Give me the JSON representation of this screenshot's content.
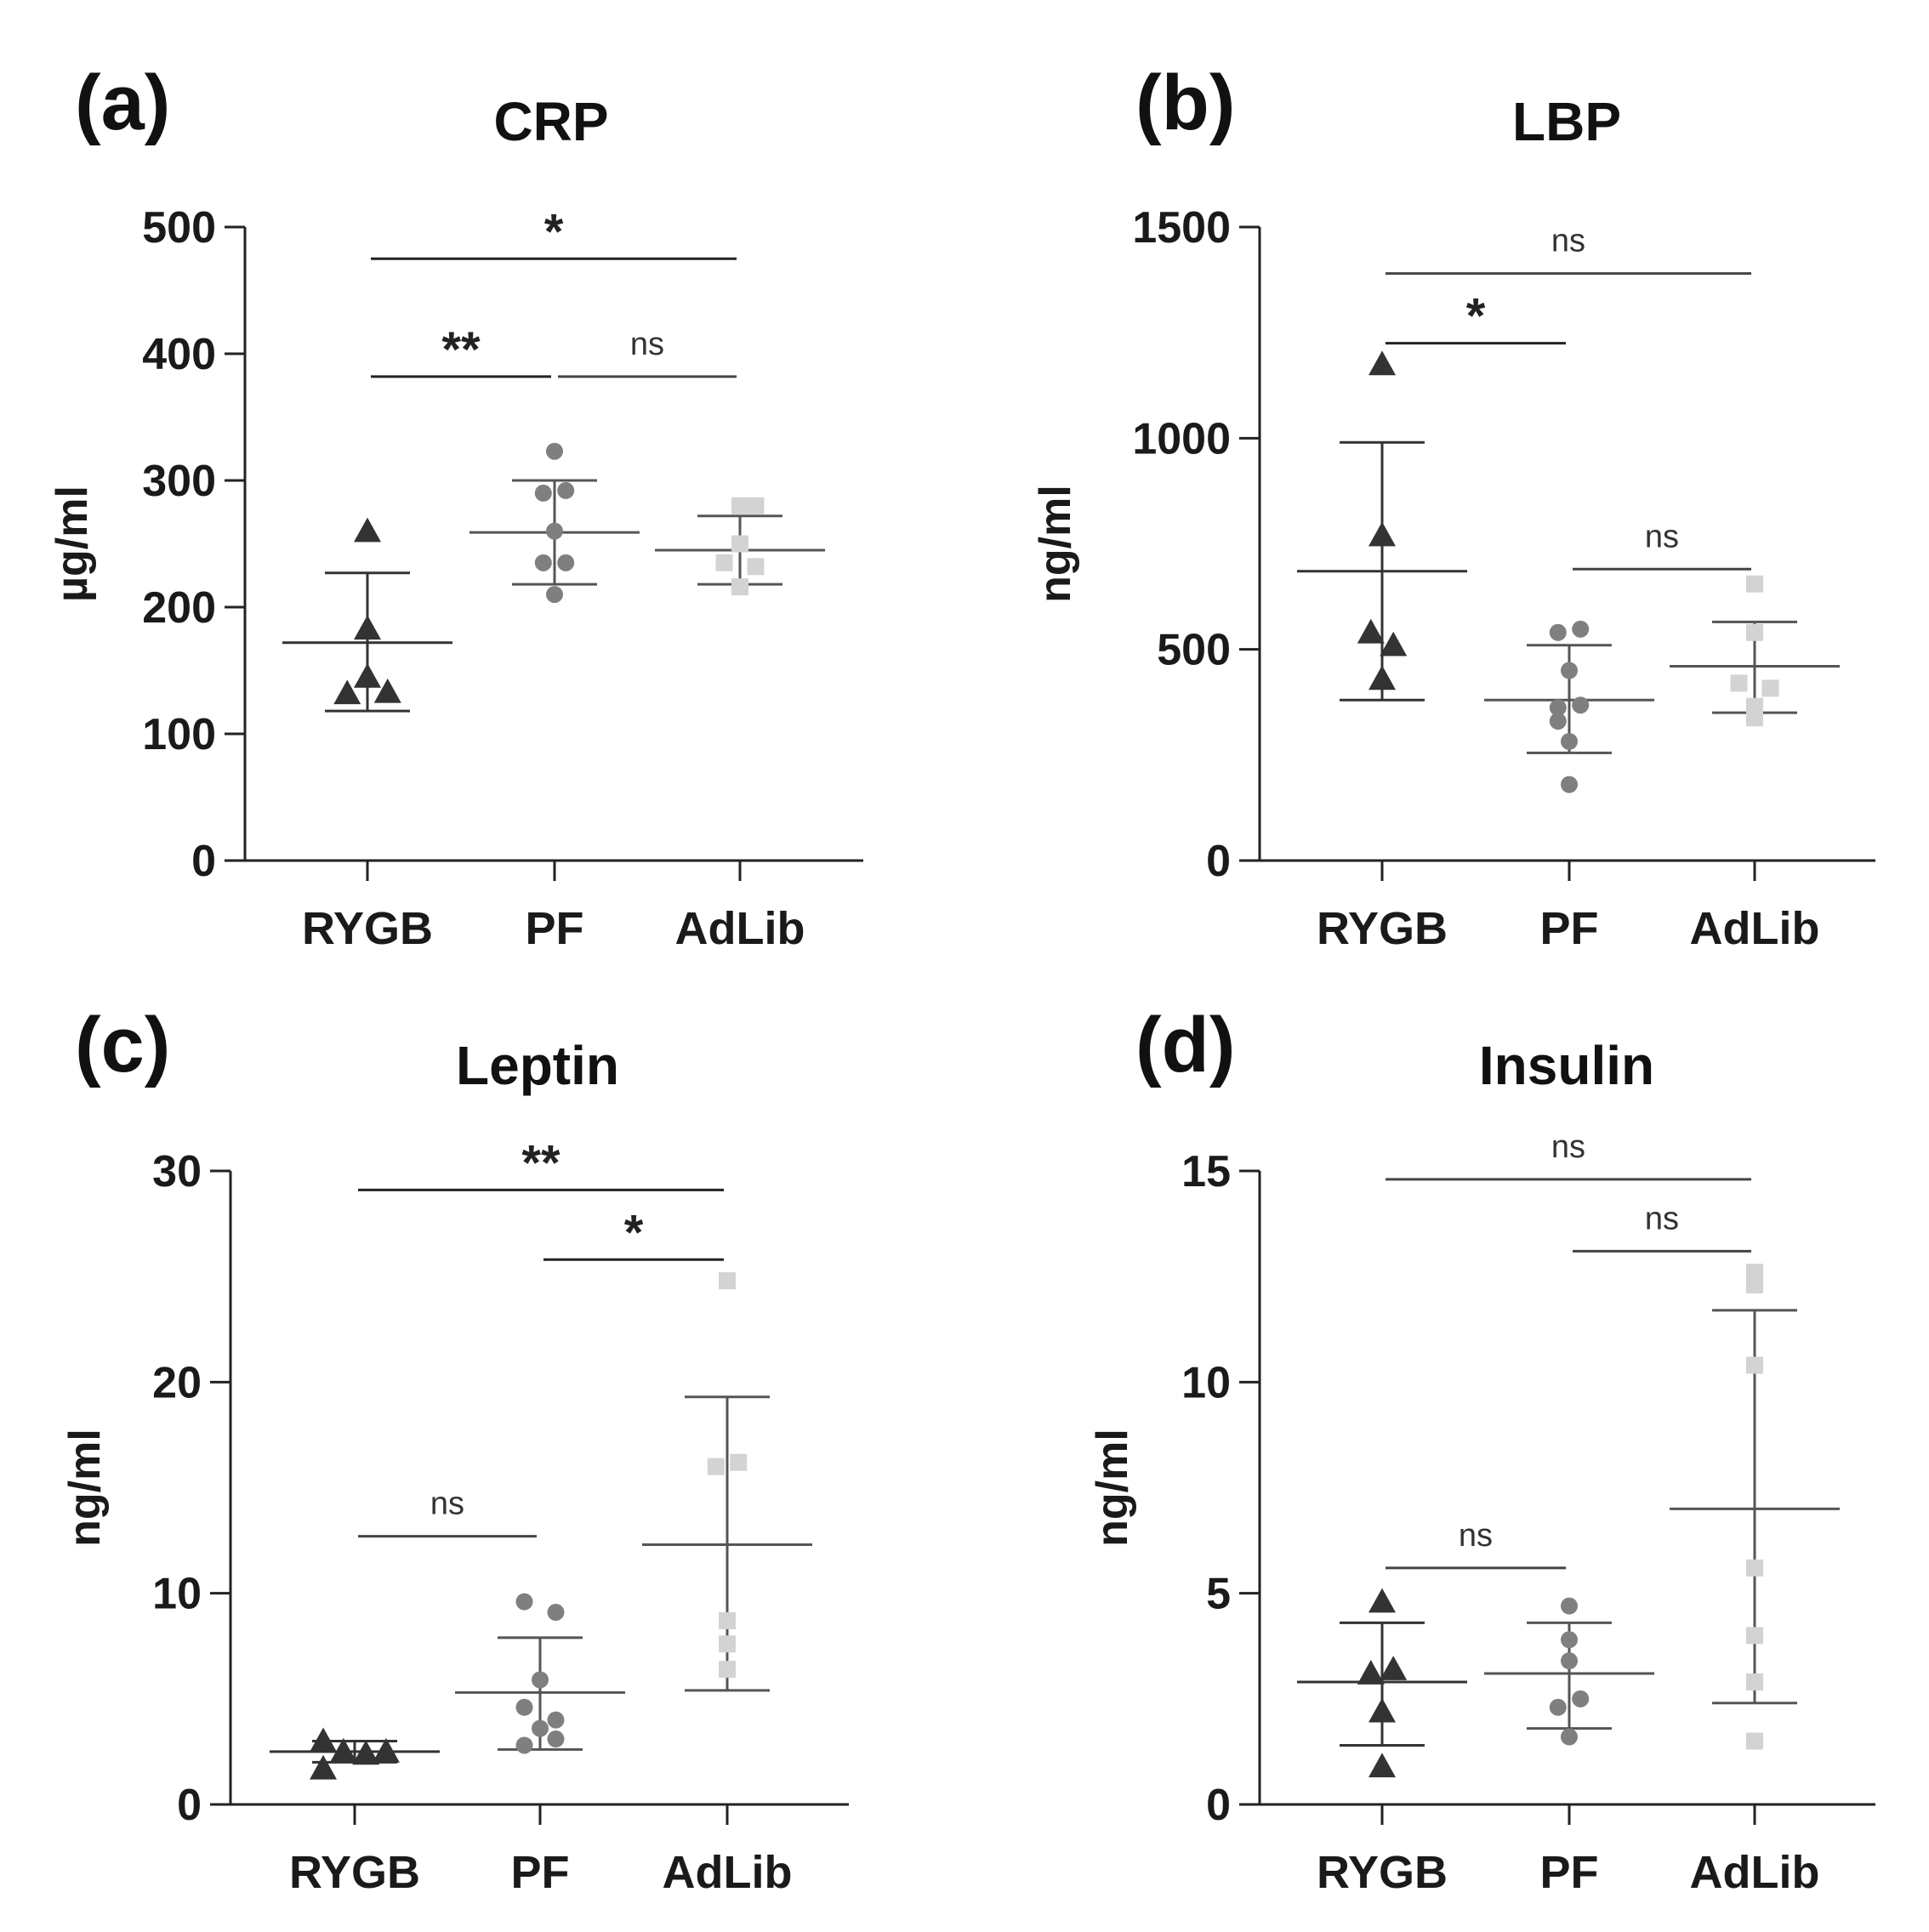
{
  "chart_data": [
    {
      "type": "scatter",
      "panel": "(a)",
      "title": "CRP",
      "ylabel": "µg/ml",
      "xlabel": "",
      "ylim": [
        0,
        500
      ],
      "yticks": [
        0,
        100,
        200,
        300,
        400,
        500
      ],
      "categories": [
        "RYGB",
        "PF",
        "AdLib"
      ],
      "series": [
        {
          "name": "RYGB",
          "marker": "triangle",
          "color": "#333333",
          "mean": 172,
          "sd_upper": 227,
          "sd_lower": 118,
          "points": [
            {
              "dx": 0,
              "y": 260
            },
            {
              "dx": 0,
              "y": 183
            },
            {
              "dx": 0,
              "y": 145
            },
            {
              "dx": -0.18,
              "y": 132
            },
            {
              "dx": 0.18,
              "y": 133
            }
          ]
        },
        {
          "name": "PF",
          "marker": "circle",
          "color": "#7f7f7f",
          "mean": 259,
          "sd_upper": 300,
          "sd_lower": 218,
          "points": [
            {
              "dx": 0,
              "y": 323
            },
            {
              "dx": -0.1,
              "y": 290
            },
            {
              "dx": 0.1,
              "y": 292
            },
            {
              "dx": 0,
              "y": 260
            },
            {
              "dx": -0.1,
              "y": 235
            },
            {
              "dx": 0.1,
              "y": 235
            },
            {
              "dx": 0,
              "y": 210
            }
          ]
        },
        {
          "name": "AdLib",
          "marker": "square",
          "color": "#d3d3d3",
          "mean": 245,
          "sd_upper": 272,
          "sd_lower": 218,
          "points": [
            {
              "dx": 0,
              "y": 280
            },
            {
              "dx": 0.14,
              "y": 280
            },
            {
              "dx": 0,
              "y": 250
            },
            {
              "dx": -0.14,
              "y": 235
            },
            {
              "dx": 0.14,
              "y": 232
            },
            {
              "dx": 0,
              "y": 216
            }
          ]
        }
      ],
      "comparisons": [
        {
          "from": 0,
          "to": 2,
          "y": 475,
          "label": "*"
        },
        {
          "from": 0,
          "to": 1,
          "y": 382,
          "label": "**"
        },
        {
          "from": 1,
          "to": 2,
          "y": 382,
          "label": "ns"
        }
      ]
    },
    {
      "type": "scatter",
      "panel": "(b)",
      "title": "LBP",
      "ylabel": "ng/ml",
      "xlabel": "",
      "ylim": [
        0,
        1500
      ],
      "yticks": [
        0,
        500,
        1000,
        1500
      ],
      "categories": [
        "RYGB",
        "PF",
        "AdLib"
      ],
      "series": [
        {
          "name": "RYGB",
          "marker": "triangle",
          "color": "#333333",
          "mean": 685,
          "sd_upper": 990,
          "sd_lower": 380,
          "points": [
            {
              "dx": 0,
              "y": 1175
            },
            {
              "dx": 0,
              "y": 770
            },
            {
              "dx": -0.1,
              "y": 540
            },
            {
              "dx": 0.1,
              "y": 510
            },
            {
              "dx": 0,
              "y": 430
            }
          ]
        },
        {
          "name": "PF",
          "marker": "circle",
          "color": "#7f7f7f",
          "mean": 380,
          "sd_upper": 510,
          "sd_lower": 255,
          "points": [
            {
              "dx": -0.1,
              "y": 540
            },
            {
              "dx": 0.1,
              "y": 548
            },
            {
              "dx": 0,
              "y": 450
            },
            {
              "dx": -0.1,
              "y": 362
            },
            {
              "dx": 0.1,
              "y": 368
            },
            {
              "dx": -0.1,
              "y": 330
            },
            {
              "dx": 0,
              "y": 282
            },
            {
              "dx": 0,
              "y": 180
            }
          ]
        },
        {
          "name": "AdLib",
          "marker": "square",
          "color": "#d3d3d3",
          "mean": 460,
          "sd_upper": 565,
          "sd_lower": 350,
          "points": [
            {
              "dx": 0,
              "y": 655
            },
            {
              "dx": 0,
              "y": 540
            },
            {
              "dx": -0.14,
              "y": 420
            },
            {
              "dx": 0.14,
              "y": 408
            },
            {
              "dx": 0,
              "y": 365
            },
            {
              "dx": 0,
              "y": 338
            }
          ]
        }
      ],
      "comparisons": [
        {
          "from": 0,
          "to": 2,
          "y": 1390,
          "label": "ns"
        },
        {
          "from": 0,
          "to": 1,
          "y": 1225,
          "label": "*"
        },
        {
          "from": 1,
          "to": 2,
          "y": 690,
          "label": "ns"
        }
      ]
    },
    {
      "type": "scatter",
      "panel": "(c)",
      "title": "Leptin",
      "ylabel": "ng/ml",
      "xlabel": "",
      "ylim": [
        0,
        30
      ],
      "yticks": [
        0,
        10,
        20,
        30
      ],
      "categories": [
        "RYGB",
        "PF",
        "AdLib"
      ],
      "series": [
        {
          "name": "RYGB",
          "marker": "triangle",
          "color": "#333333",
          "mean": 2.5,
          "sd_upper": 3.0,
          "sd_lower": 2.0,
          "points": [
            {
              "dx": -0.28,
              "y": 3.0
            },
            {
              "dx": -0.28,
              "y": 1.7
            },
            {
              "dx": -0.1,
              "y": 2.5
            },
            {
              "dx": 0.1,
              "y": 2.4
            },
            {
              "dx": 0.28,
              "y": 2.5
            }
          ]
        },
        {
          "name": "PF",
          "marker": "circle",
          "color": "#7f7f7f",
          "mean": 5.3,
          "sd_upper": 7.9,
          "sd_lower": 2.6,
          "points": [
            {
              "dx": -0.14,
              "y": 9.6
            },
            {
              "dx": 0.14,
              "y": 9.1
            },
            {
              "dx": 0,
              "y": 5.9
            },
            {
              "dx": -0.14,
              "y": 4.6
            },
            {
              "dx": 0.14,
              "y": 4.0
            },
            {
              "dx": 0,
              "y": 3.6
            },
            {
              "dx": -0.14,
              "y": 2.8
            },
            {
              "dx": 0.14,
              "y": 3.1
            }
          ]
        },
        {
          "name": "AdLib",
          "marker": "square",
          "color": "#d3d3d3",
          "mean": 12.3,
          "sd_upper": 19.3,
          "sd_lower": 5.4,
          "points": [
            {
              "dx": 0,
              "y": 24.8
            },
            {
              "dx": -0.1,
              "y": 16.0
            },
            {
              "dx": 0.1,
              "y": 16.2
            },
            {
              "dx": 0,
              "y": 8.7
            },
            {
              "dx": 0,
              "y": 7.6
            },
            {
              "dx": 0,
              "y": 6.4
            }
          ]
        }
      ],
      "comparisons": [
        {
          "from": 0,
          "to": 2,
          "y": 29.1,
          "label": "**"
        },
        {
          "from": 1,
          "to": 2,
          "y": 25.8,
          "label": "*"
        },
        {
          "from": 0,
          "to": 1,
          "y": 12.7,
          "label": "ns"
        }
      ]
    },
    {
      "type": "scatter",
      "panel": "(d)",
      "title": "Insulin",
      "ylabel": "ng/ml",
      "xlabel": "",
      "ylim": [
        0,
        15
      ],
      "yticks": [
        0,
        5,
        10,
        15
      ],
      "categories": [
        "RYGB",
        "PF",
        "AdLib"
      ],
      "series": [
        {
          "name": "RYGB",
          "marker": "triangle",
          "color": "#333333",
          "mean": 2.9,
          "sd_upper": 4.3,
          "sd_lower": 1.4,
          "points": [
            {
              "dx": 0,
              "y": 4.8
            },
            {
              "dx": -0.1,
              "y": 3.1
            },
            {
              "dx": 0.1,
              "y": 3.2
            },
            {
              "dx": 0,
              "y": 2.2
            },
            {
              "dx": 0,
              "y": 0.9
            }
          ]
        },
        {
          "name": "PF",
          "marker": "circle",
          "color": "#7f7f7f",
          "mean": 3.1,
          "sd_upper": 4.3,
          "sd_lower": 1.8,
          "points": [
            {
              "dx": 0,
              "y": 4.7
            },
            {
              "dx": 0,
              "y": 3.9
            },
            {
              "dx": 0,
              "y": 3.4
            },
            {
              "dx": 0.1,
              "y": 2.5
            },
            {
              "dx": -0.1,
              "y": 2.3
            },
            {
              "dx": 0,
              "y": 1.6
            }
          ]
        },
        {
          "name": "AdLib",
          "marker": "square",
          "color": "#d3d3d3",
          "mean": 7.0,
          "sd_upper": 11.7,
          "sd_lower": 2.4,
          "points": [
            {
              "dx": 0,
              "y": 12.6
            },
            {
              "dx": 0,
              "y": 12.3
            },
            {
              "dx": 0,
              "y": 10.4
            },
            {
              "dx": 0,
              "y": 5.6
            },
            {
              "dx": 0,
              "y": 4.0
            },
            {
              "dx": 0,
              "y": 2.9
            },
            {
              "dx": 0,
              "y": 1.5
            }
          ]
        }
      ],
      "comparisons": [
        {
          "from": 0,
          "to": 2,
          "y": 14.8,
          "label": "ns"
        },
        {
          "from": 1,
          "to": 2,
          "y": 13.1,
          "label": "ns"
        },
        {
          "from": 0,
          "to": 1,
          "y": 5.6,
          "label": "ns"
        }
      ]
    }
  ]
}
